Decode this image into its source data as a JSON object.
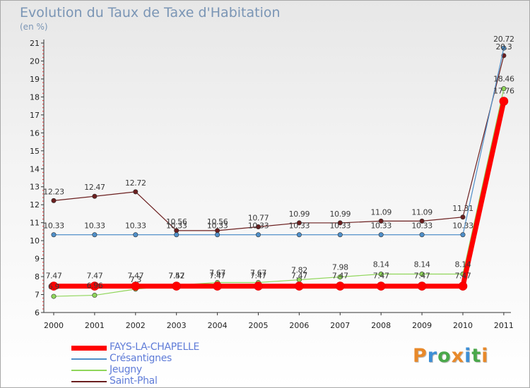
{
  "chart_data": {
    "type": "line",
    "title": "Evolution du Taux de Taxe d'Habitation",
    "subtitle": "(en %)",
    "xlabel": "",
    "ylabel": "",
    "ylim": [
      6,
      21
    ],
    "y_ticks": [
      "6",
      "7",
      "8",
      "9",
      "10",
      "11",
      "12",
      "13",
      "14",
      "15",
      "16",
      "17",
      "18",
      "19",
      "20",
      "21"
    ],
    "categories": [
      "2000",
      "2001",
      "2002",
      "2003",
      "2004",
      "2005",
      "2006",
      "2007",
      "2008",
      "2009",
      "2010",
      "2011"
    ],
    "legend_position": "bottom-left",
    "series": [
      {
        "name": "Saint-Phal",
        "color": "#6b1f1f",
        "values": [
          12.23,
          12.47,
          12.72,
          10.56,
          10.56,
          10.77,
          10.99,
          10.99,
          11.09,
          11.09,
          11.31,
          20.3
        ],
        "labels": [
          "12.23",
          "12.47",
          "12.72",
          "10.56",
          "10.56",
          "10.77",
          "10.99",
          "10.99",
          "11.09",
          "11.09",
          "11.31",
          "20.3"
        ]
      },
      {
        "name": "Crésantignes",
        "color": "#4f8fc9",
        "values": [
          10.33,
          10.33,
          10.33,
          10.33,
          10.33,
          10.33,
          10.33,
          10.33,
          10.33,
          10.33,
          10.33,
          20.72
        ],
        "labels": [
          "10.33",
          "10.33",
          "10.33",
          "10.33",
          "10.33",
          "10.33",
          "10.33",
          "10.33",
          "10.33",
          "10.33",
          "10.33",
          "20.72"
        ]
      },
      {
        "name": "Jeugny",
        "color": "#8fd65a",
        "values": [
          6.9,
          6.96,
          7.3,
          7.52,
          7.67,
          7.67,
          7.82,
          7.98,
          8.14,
          8.14,
          8.14,
          18.46
        ],
        "labels": [
          "6.9",
          "6.96",
          "7.3",
          "7.52",
          "7.67",
          "7.67",
          "7.82",
          "7.98",
          "8.14",
          "8.14",
          "8.14",
          "18.46"
        ]
      },
      {
        "name": "FAYS-LA-CHAPELLE",
        "color": "#ff0000",
        "values": [
          7.47,
          7.47,
          7.47,
          7.47,
          7.47,
          7.47,
          7.47,
          7.47,
          7.47,
          7.47,
          7.47,
          17.76
        ],
        "labels": [
          "7.47",
          "7.47",
          "7.47",
          "7.47",
          "7.47",
          "7.47",
          "7.47",
          "7.47",
          "7.47",
          "7.47",
          "7.47",
          "17.76"
        ]
      }
    ]
  },
  "legend": {
    "items": [
      {
        "label": "FAYS-LA-CHAPELLE",
        "color": "#ff0000"
      },
      {
        "label": "Crésantignes",
        "color": "#4f8fc9"
      },
      {
        "label": "Jeugny",
        "color": "#8fd65a"
      },
      {
        "label": "Saint-Phal",
        "color": "#6b1f1f"
      }
    ]
  },
  "logo": {
    "text": "Proxiti",
    "letters": [
      "P",
      "r",
      "o",
      "x",
      "i",
      "t",
      "i"
    ],
    "colors": [
      "#e8892a",
      "#3d8fd6",
      "#4aa84a",
      "#e8892a",
      "#3d8fd6",
      "#4aa84a",
      "#e8892a"
    ]
  }
}
